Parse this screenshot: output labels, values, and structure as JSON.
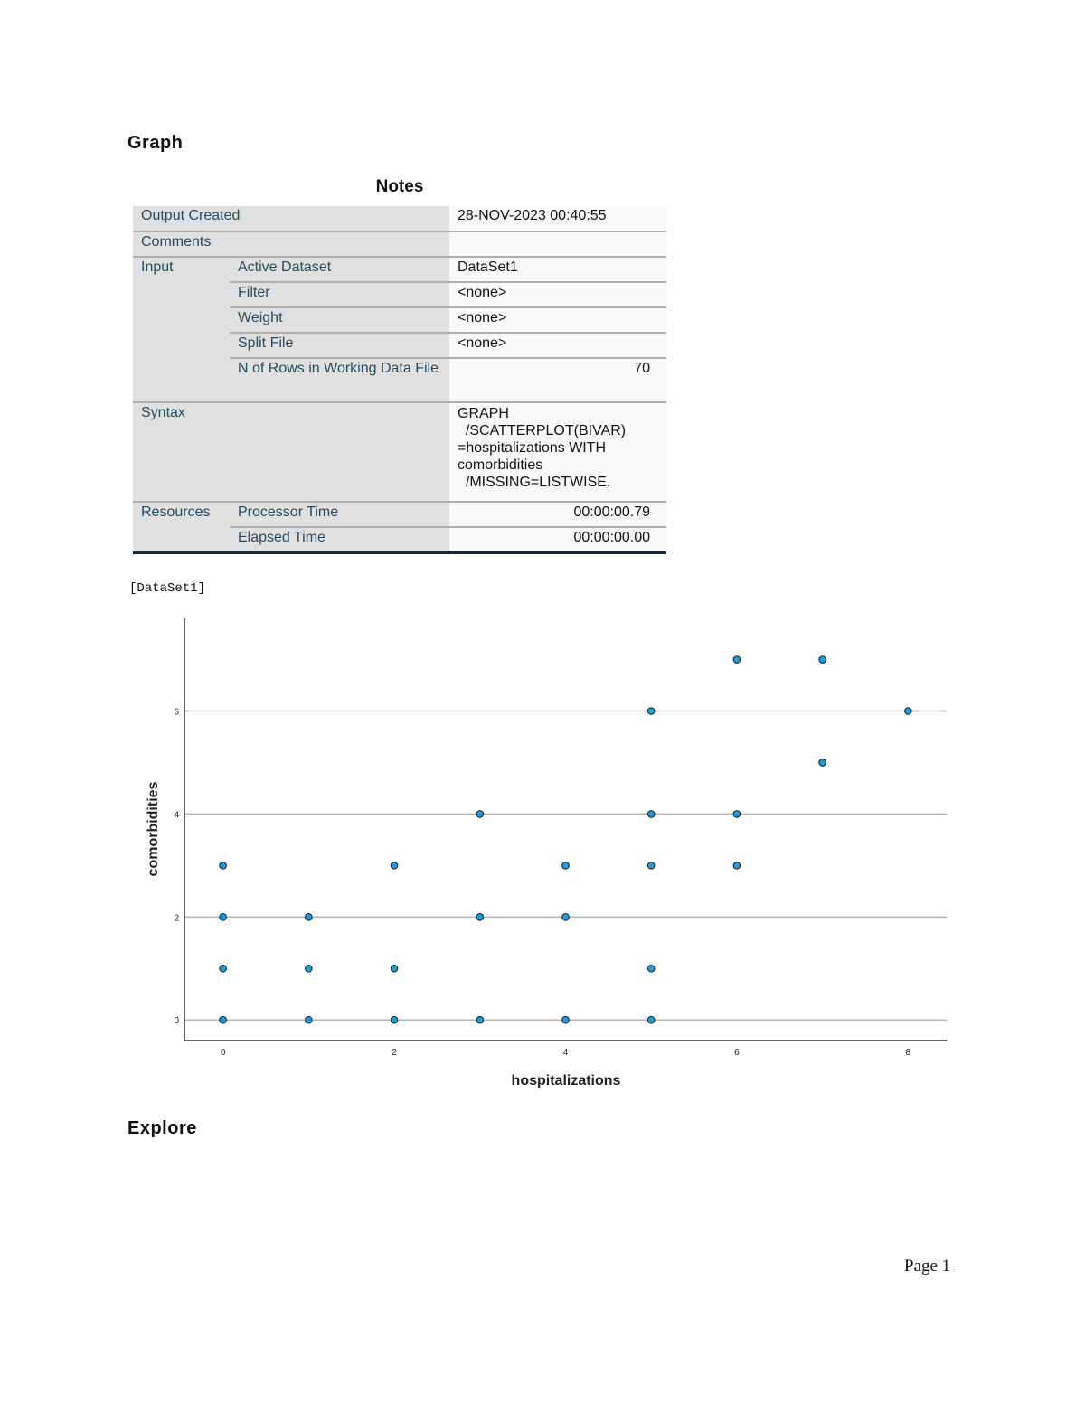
{
  "headings": {
    "graph": "Graph",
    "explore": "Explore"
  },
  "notes": {
    "title": "Notes",
    "output_created": {
      "label": "Output Created",
      "value": "28-NOV-2023 00:40:55"
    },
    "comments": {
      "label": "Comments",
      "value": ""
    },
    "input": {
      "label": "Input",
      "active_dataset": {
        "label": "Active Dataset",
        "value": "DataSet1"
      },
      "filter": {
        "label": "Filter",
        "value": "<none>"
      },
      "weight": {
        "label": "Weight",
        "value": "<none>"
      },
      "split_file": {
        "label": "Split File",
        "value": "<none>"
      },
      "n_rows": {
        "label": "N of Rows in Working Data File",
        "value": "70"
      }
    },
    "syntax": {
      "label": "Syntax",
      "lines": [
        "GRAPH",
        "  /SCATTERPLOT(BIVAR)",
        "=hospitalizations WITH",
        "comorbidities",
        "  /MISSING=LISTWISE."
      ]
    },
    "resources": {
      "label": "Resources",
      "processor_time": {
        "label": "Processor Time",
        "value": "00:00:00.79"
      },
      "elapsed_time": {
        "label": "Elapsed Time",
        "value": "00:00:00.00"
      }
    }
  },
  "dataset_label": "[DataSet1]",
  "chart_data": {
    "type": "scatter",
    "xlabel": "hospitalizations",
    "ylabel": "comorbidities",
    "xticks": [
      0,
      2,
      4,
      6,
      8
    ],
    "yticks": [
      0,
      2,
      4,
      6
    ],
    "xlim": [
      -0.45,
      8.45
    ],
    "ylim": [
      -0.4,
      7.8
    ],
    "grid": "horizontal",
    "marker_color": "#1f9be6",
    "points": [
      [
        0,
        0
      ],
      [
        0,
        1
      ],
      [
        0,
        2
      ],
      [
        0,
        3
      ],
      [
        1,
        0
      ],
      [
        1,
        1
      ],
      [
        1,
        2
      ],
      [
        2,
        0
      ],
      [
        2,
        1
      ],
      [
        2,
        3
      ],
      [
        3,
        0
      ],
      [
        3,
        2
      ],
      [
        3,
        4
      ],
      [
        4,
        0
      ],
      [
        4,
        2
      ],
      [
        4,
        3
      ],
      [
        5,
        0
      ],
      [
        5,
        1
      ],
      [
        5,
        3
      ],
      [
        5,
        4
      ],
      [
        5,
        6
      ],
      [
        6,
        3
      ],
      [
        6,
        4
      ],
      [
        6,
        7
      ],
      [
        7,
        5
      ],
      [
        7,
        7
      ],
      [
        8,
        6
      ]
    ]
  },
  "footer": {
    "page": "Page 1"
  }
}
